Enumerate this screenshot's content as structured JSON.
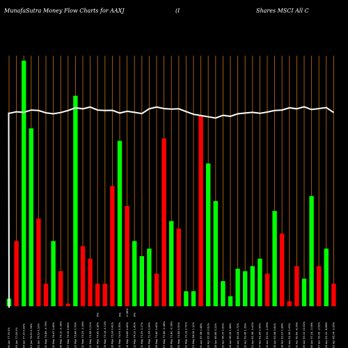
{
  "header": {
    "title": "MunafaSutra  Money Flow  Charts for AAXJ",
    "paren": "(I",
    "company": "Shares MSCI All C"
  },
  "colors": {
    "background": "#000000",
    "gridline": "#b8660b",
    "up": "#00ff00",
    "down": "#ff0000",
    "price_line": "#ffffff"
  },
  "chart_data": {
    "type": "bar",
    "ylim": [
      0,
      100
    ],
    "grid": true,
    "categories": [
      "2 Fri Jun 2025",
      "30 Fri May 2025",
      "29 Thu May 2025",
      "28 Wed May 2025",
      "27 Tue May 2025",
      "23 Fri May 2025",
      "22 Thu May 2025",
      "21 Wed May 2025",
      "20 Tue May 2025",
      "19 Mon May 2025",
      "16 Fri May 2025",
      "15 Thu May 2025",
      "14 Wed May 2025",
      "13 Tue May 2025",
      "12 Mon May 2025",
      "9 Fri May 2025",
      "8 Thu May 2025",
      "7 Wed May 2025",
      "6 Tue May 2025",
      "5 Mon May 2025",
      "2 Fri May 2025",
      "1 Thu May 2025",
      "30 Wed Apr 2025",
      "29 Tue Apr 2025",
      "28 Mon Apr 2025",
      "25 Fri Apr 2025",
      "24 Thu Apr 2025",
      "23 Wed Apr 2025",
      "22 Tue Apr 2025",
      "21 Mon Apr 2025",
      "17 Thu Apr 2025",
      "16 Wed Apr 2025",
      "15 Tue Apr 2025",
      "14 Mon Apr 2025",
      "11 Fri Apr 2025",
      "10 Thu Apr 2025",
      "9 Wed Apr 2025",
      "8 Tue Apr 2025",
      "7 Mon Apr 2025",
      "4 Fri Apr 2025",
      "3 Thu Apr 2025",
      "2 Wed Apr 2025",
      "1 Tue Apr 2025",
      "31 Mon Mar 2025",
      "28 Fri Mar 2025"
    ],
    "tick_labels": [
      "06 Jun 77.76 0%",
      "05 Jun 77.08 0%",
      "04 Jun 77.15 0.80%",
      "03 Jun 76.63 0.36%",
      "02 Jun 76.53 0.32%",
      "30 May 75.86 -0.79%",
      "29 May 76.47 0.48%",
      "28 May 76.10 -0.34%",
      "27 May 76.36 0.68%",
      "23 May 75.84 0.79%",
      "22 May 75.25 -0.44%",
      "21 May 75.58 0.21%",
      "20 May 75.42 0.38%",
      "19 May 75.14 -0.13%",
      "16 May 75.24 0.41%",
      "15 May 74.93 0.36%",
      "14 May 74.66 0.46%",
      "13 May 74.32 1.40%",
      "12 May 73.29 3.17%",
      "09 May 71.04 0.34%",
      "08 May 70.80 0.49%",
      "07 May 70.46 -0.48%",
      "06 May 70.80 -0.06%",
      "05 May 70.84 0.93%",
      "02 May 70.19 2.71%",
      "01 May 68.34 1.12%",
      "30 Apr 67.58 0.48%",
      "29 Apr 67.26 0.61%",
      "28 Apr 66.85 0.22%",
      "25 Apr 66.70 0.63%",
      "24 Apr 66.28 1.68%",
      "23 Apr 65.18 2.72%",
      "22 Apr 63.45 1.39%",
      "21 Apr 62.58 -0.43%",
      "17 Apr 62.85 0.55%",
      "16 Apr 62.51 -1.69%",
      "15 Apr 63.58 0.62%",
      "14 Apr 63.19 1.98%",
      "11 Apr 61.96 2.09%",
      "10 Apr 60.69 -4.16%",
      "09 Apr 63.32 10.62%",
      "08 Apr 57.24 -3.08%",
      "07 Apr 59.06 -3.52%",
      "04 Apr 61.22 -6.88%",
      "03 Apr 65.74 -3.95%"
    ],
    "mid_labels": [
      "6%",
      "6%",
      "0.48%",
      "6%"
    ],
    "series": [
      {
        "values": [
          3,
          26,
          98,
          71,
          35,
          9,
          26,
          14,
          1,
          84,
          24,
          19,
          9,
          9,
          48,
          66,
          40,
          26,
          20,
          23,
          13,
          67,
          34,
          31,
          6,
          6,
          76,
          57,
          42,
          10,
          4,
          15,
          14,
          16,
          19,
          13,
          38,
          29,
          2,
          16,
          11,
          44,
          16,
          23,
          9
        ],
        "direction": [
          "up",
          "down",
          "up",
          "up",
          "down",
          "down",
          "up",
          "down",
          "down",
          "up",
          "down",
          "down",
          "down",
          "down",
          "down",
          "up",
          "down",
          "up",
          "up",
          "up",
          "down",
          "down",
          "up",
          "down",
          "up",
          "up",
          "down",
          "up",
          "up",
          "up",
          "up",
          "up",
          "up",
          "up",
          "up",
          "down",
          "up",
          "down",
          "down",
          "down",
          "up",
          "up",
          "down",
          "up",
          "down"
        ]
      },
      {
        "values": [
          77,
          77.6,
          77.4,
          78.3,
          78.1,
          77.2,
          76.8,
          77.3,
          78.1,
          79.2,
          78.8,
          79.5,
          78.3,
          78.1,
          78.2,
          77.1,
          77.8,
          77.4,
          76.9,
          78.8,
          79.5,
          78.9,
          78.7,
          78.8,
          77.7,
          76.6,
          76.1,
          75.6,
          75.1,
          76.2,
          75.8,
          76.8,
          77.1,
          77.4,
          77.0,
          77.5,
          78.1,
          78.3,
          79.2,
          78.8,
          79.6,
          78.5,
          78.9,
          79.3,
          77.3
        ]
      }
    ]
  }
}
